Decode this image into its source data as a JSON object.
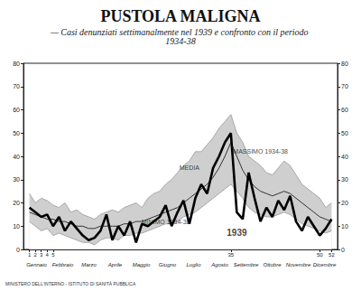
{
  "chart_data": {
    "type": "line",
    "title": "PUSTOLA MALIGNA",
    "subtitle": "— Casi denunziati settimanalmente nel 1939 e confronto con il periodo 1934-38",
    "footer": "MINISTERO DELL'INTERNO - ISTITUTO DI SANITÀ PUBBLICA",
    "x": [
      1,
      2,
      3,
      4,
      5,
      6,
      7,
      8,
      9,
      10,
      11,
      12,
      13,
      14,
      15,
      16,
      17,
      18,
      19,
      20,
      21,
      22,
      23,
      24,
      25,
      26,
      27,
      28,
      29,
      30,
      31,
      32,
      33,
      34,
      35,
      36,
      37,
      38,
      39,
      40,
      41,
      42,
      43,
      44,
      45,
      46,
      47,
      48,
      49,
      50,
      51,
      52
    ],
    "xlim": [
      0,
      53
    ],
    "xticks": [
      1,
      2,
      3,
      4,
      5,
      35,
      50,
      52
    ],
    "months": [
      "Gennaio",
      "Febbraio",
      "Marzo",
      "Aprile",
      "Maggio",
      "Giugno",
      "Luglio",
      "Agosto",
      "Settembre",
      "Ottobre",
      "Novembre",
      "Dicembre"
    ],
    "ylim": [
      0,
      80
    ],
    "yticks": [
      0,
      10,
      20,
      30,
      40,
      50,
      60,
      70,
      80
    ],
    "y2lim": [
      0,
      80
    ],
    "y2ticks": [
      0,
      10,
      20,
      30,
      40,
      50,
      60,
      70,
      80
    ],
    "grid": false,
    "series": [
      {
        "name": "MASSIMO 1934-38",
        "type": "area",
        "color": "#a8a8a8",
        "line_style": "thin",
        "values": [
          24,
          20,
          22,
          21,
          19,
          18,
          20,
          16,
          17,
          15,
          14,
          13,
          15,
          16,
          17,
          16,
          18,
          19,
          20,
          18,
          22,
          24,
          25,
          28,
          30,
          33,
          36,
          38,
          42,
          42,
          45,
          48,
          52,
          55,
          58,
          50,
          46,
          40,
          38,
          36,
          33,
          32,
          35,
          38,
          36,
          32,
          28,
          26,
          24,
          22,
          18,
          20
        ]
      },
      {
        "name": "MINIMO 1934-38",
        "type": "area",
        "color": "#a8a8a8",
        "line_style": "thin",
        "values": [
          12,
          10,
          8,
          9,
          6,
          7,
          6,
          5,
          4,
          3,
          3,
          2,
          4,
          5,
          5,
          4,
          6,
          6,
          7,
          7,
          8,
          9,
          10,
          11,
          11,
          12,
          14,
          15,
          16,
          18,
          20,
          22,
          24,
          26,
          28,
          25,
          22,
          18,
          16,
          15,
          14,
          14,
          15,
          16,
          15,
          13,
          11,
          10,
          9,
          8,
          7,
          8
        ]
      },
      {
        "name": "MEDIA",
        "type": "line",
        "color": "#333333",
        "line_style": "thin",
        "values": [
          16,
          15,
          14,
          13,
          13,
          12,
          12,
          11,
          10,
          10,
          9,
          9,
          10,
          10,
          10,
          10,
          11,
          11,
          12,
          12,
          13,
          14,
          15,
          16,
          17,
          18,
          20,
          22,
          24,
          26,
          28,
          31,
          35,
          40,
          46,
          40,
          34,
          30,
          27,
          25,
          24,
          23,
          24,
          25,
          24,
          22,
          20,
          18,
          16,
          14,
          13,
          12
        ]
      },
      {
        "name": "1939",
        "type": "line",
        "color": "#000000",
        "line_style": "thick",
        "values": [
          18,
          16,
          14,
          15,
          10,
          14,
          8,
          12,
          9,
          6,
          4,
          5,
          8,
          15,
          4,
          10,
          6,
          12,
          3,
          11,
          10,
          12,
          14,
          19,
          10,
          16,
          21,
          11,
          22,
          28,
          24,
          35,
          40,
          46,
          50,
          16,
          13,
          33,
          22,
          12,
          18,
          14,
          21,
          17,
          23,
          12,
          8,
          14,
          10,
          6,
          9,
          13
        ]
      }
    ],
    "annotations": [
      {
        "text": "MASSIMO 1934-38",
        "x": 40,
        "y": 42
      },
      {
        "text": "MEDIA",
        "x": 28,
        "y": 35
      },
      {
        "text": "MINIMO 1934-38",
        "x": 24,
        "y": 12
      },
      {
        "text": "1939",
        "x": 36,
        "y": 7
      }
    ]
  }
}
